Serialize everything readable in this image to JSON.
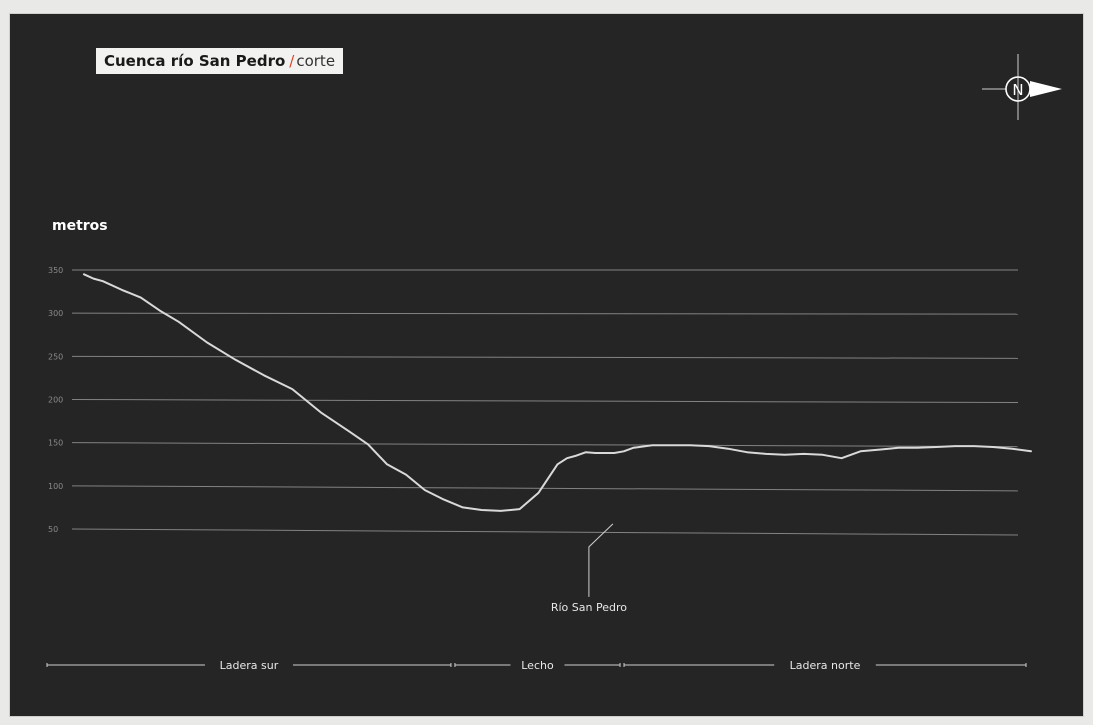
{
  "header": {
    "title": "Cuenca río San Pedro",
    "separator": "/",
    "subtitle": "corte"
  },
  "compass": {
    "label": "N",
    "icon": "north-arrow-icon"
  },
  "colors": {
    "background": "#252526",
    "line": "#d9d9d9",
    "grid": "#9a9a9a",
    "accent": "#e0452b"
  },
  "chart_data": {
    "type": "line",
    "title": "Cuenca río San Pedro /corte",
    "ylabel": "metros",
    "xlabel": "",
    "ylim": [
      50,
      350
    ],
    "yticks": [
      350,
      300,
      250,
      200,
      150,
      100,
      50
    ],
    "grid": true,
    "x": [
      0,
      1,
      2,
      4,
      6,
      8,
      10,
      13,
      16,
      19,
      22,
      25,
      28,
      30,
      32,
      34,
      36,
      38,
      40,
      42,
      44,
      46,
      48,
      50,
      51,
      52,
      53,
      54,
      55,
      56,
      57,
      58,
      60,
      62,
      64,
      66,
      68,
      70,
      72,
      74,
      76,
      78,
      80,
      82,
      84,
      86,
      88,
      90,
      92,
      94,
      96,
      98,
      100
    ],
    "series": [
      {
        "values": [
          345,
          340,
          337,
          327,
          318,
          303,
          290,
          266,
          246,
          228,
          212,
          185,
          163,
          148,
          125,
          113,
          95,
          84,
          75,
          72,
          71,
          73,
          92,
          125,
          132,
          135,
          139,
          138,
          138,
          138,
          140,
          144,
          147,
          147,
          147,
          146,
          143,
          139,
          137,
          136,
          137,
          136,
          132,
          140,
          142,
          144,
          144,
          145,
          146,
          146,
          145,
          143,
          140
        ]
      }
    ],
    "annotations": [
      {
        "text": "Río San Pedro",
        "x": 53,
        "y": 71
      }
    ],
    "zones": [
      {
        "label": "Ladera sur",
        "from": 0,
        "to": 41.5
      },
      {
        "label": "Lecho",
        "from": 41.5,
        "to": 58.7
      },
      {
        "label": "Ladera norte",
        "from": 58.7,
        "to": 100
      }
    ]
  }
}
